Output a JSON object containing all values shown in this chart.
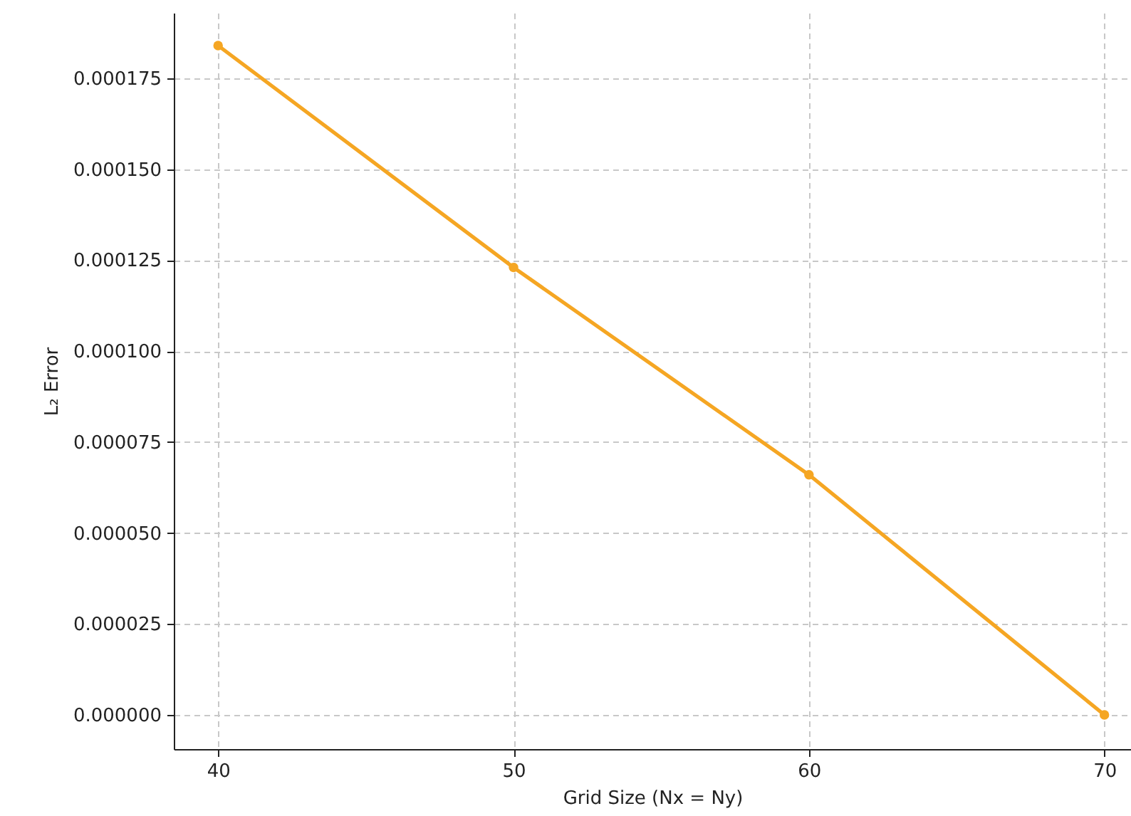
{
  "chart_data": {
    "type": "line",
    "xlabel": "Grid Size (Nx = Ny)",
    "ylabel": "L₂ Error",
    "x": [
      40,
      50,
      60,
      70
    ],
    "series": [
      {
        "color": "#f5a623",
        "values": [
          0.000184,
          0.000123,
          6.6e-05,
          0.0
        ]
      }
    ],
    "xlim": [
      38.5,
      70.9
    ],
    "xticks": [
      40,
      50,
      60,
      70
    ],
    "ylim": [
      -9.4e-06,
      0.000193
    ],
    "yticks": [
      {
        "value": 0,
        "label": "0.000000"
      },
      {
        "value": 2.5e-05,
        "label": "0.000025"
      },
      {
        "value": 5e-05,
        "label": "0.000050"
      },
      {
        "value": 7.5e-05,
        "label": "0.000075"
      },
      {
        "value": 0.0001,
        "label": "0.000100"
      },
      {
        "value": 0.000125,
        "label": "0.000125"
      },
      {
        "value": 0.00015,
        "label": "0.000150"
      },
      {
        "value": 0.000175,
        "label": "0.000175"
      }
    ],
    "grid": true,
    "marker": "circle",
    "line_style": "solid"
  }
}
